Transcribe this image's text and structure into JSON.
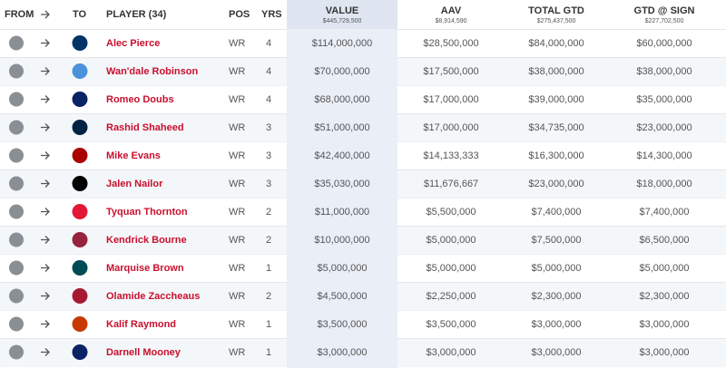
{
  "header": {
    "from": "FROM",
    "to": "TO",
    "player": "PLAYER (34)",
    "pos": "POS",
    "yrs": "YRS",
    "value": "VALUE",
    "value_total": "$445,729,500",
    "aav": "AAV",
    "aav_total": "$8,914,590",
    "total_gtd": "TOTAL GTD",
    "total_gtd_total": "$275,437,500",
    "gtd_sign": "GTD @ SIGN",
    "gtd_sign_total": "$227,702,500"
  },
  "rows": [
    {
      "player": "Alec Pierce",
      "pos": "WR",
      "yrs": 4,
      "value": "$114,000,000",
      "aav": "$28,500,000",
      "total_gtd": "$84,000,000",
      "gtd_sign": "$60,000,000"
    },
    {
      "player": "Wan'dale Robinson",
      "pos": "WR",
      "yrs": 4,
      "value": "$70,000,000",
      "aav": "$17,500,000",
      "total_gtd": "$38,000,000",
      "gtd_sign": "$38,000,000"
    },
    {
      "player": "Romeo Doubs",
      "pos": "WR",
      "yrs": 4,
      "value": "$68,000,000",
      "aav": "$17,000,000",
      "total_gtd": "$39,000,000",
      "gtd_sign": "$35,000,000"
    },
    {
      "player": "Rashid Shaheed",
      "pos": "WR",
      "yrs": 3,
      "value": "$51,000,000",
      "aav": "$17,000,000",
      "total_gtd": "$34,735,000",
      "gtd_sign": "$23,000,000"
    },
    {
      "player": "Mike Evans",
      "pos": "WR",
      "yrs": 3,
      "value": "$42,400,000",
      "aav": "$14,133,333",
      "total_gtd": "$16,300,000",
      "gtd_sign": "$14,300,000"
    },
    {
      "player": "Jalen Nailor",
      "pos": "WR",
      "yrs": 3,
      "value": "$35,030,000",
      "aav": "$11,676,667",
      "total_gtd": "$23,000,000",
      "gtd_sign": "$18,000,000"
    },
    {
      "player": "Tyquan Thornton",
      "pos": "WR",
      "yrs": 2,
      "value": "$11,000,000",
      "aav": "$5,500,000",
      "total_gtd": "$7,400,000",
      "gtd_sign": "$7,400,000"
    },
    {
      "player": "Kendrick Bourne",
      "pos": "WR",
      "yrs": 2,
      "value": "$10,000,000",
      "aav": "$5,000,000",
      "total_gtd": "$7,500,000",
      "gtd_sign": "$6,500,000"
    },
    {
      "player": "Marquise Brown",
      "pos": "WR",
      "yrs": 1,
      "value": "$5,000,000",
      "aav": "$5,000,000",
      "total_gtd": "$5,000,000",
      "gtd_sign": "$5,000,000"
    },
    {
      "player": "Olamide Zaccheaus",
      "pos": "WR",
      "yrs": 2,
      "value": "$4,500,000",
      "aav": "$2,250,000",
      "total_gtd": "$2,300,000",
      "gtd_sign": "$2,300,000"
    },
    {
      "player": "Kalif Raymond",
      "pos": "WR",
      "yrs": 1,
      "value": "$3,500,000",
      "aav": "$3,500,000",
      "total_gtd": "$3,000,000",
      "gtd_sign": "$3,000,000"
    },
    {
      "player": "Darnell Mooney",
      "pos": "WR",
      "yrs": 1,
      "value": "$3,000,000",
      "aav": "$3,000,000",
      "total_gtd": "$3,000,000",
      "gtd_sign": "$3,000,000"
    }
  ]
}
